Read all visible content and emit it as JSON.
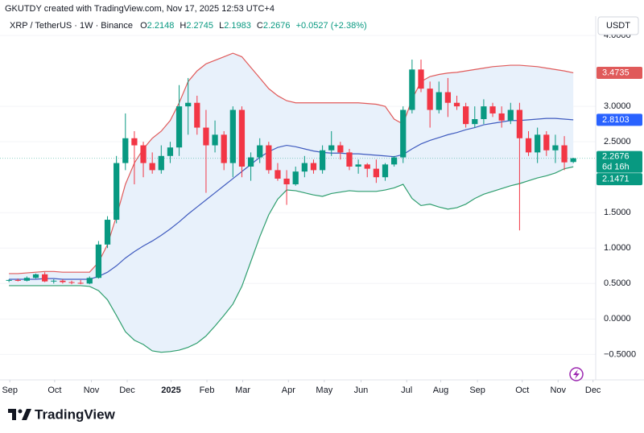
{
  "caption": "GKUTDY created with TradingView.com, Nov 17, 2025 12:53 UTC+4",
  "chart_data": {
    "type": "candlestick",
    "symbol": "XRP / TetherUS · 1W · Binance",
    "ohlc_labels": [
      "O",
      "H",
      "L",
      "C"
    ],
    "change": "+0.0527 (+2.38%)",
    "currency": "USDT",
    "countdown": "6d 16h",
    "up_color": "#089981",
    "down_color": "#f23645",
    "x": [
      0,
      1,
      2,
      3,
      4,
      5,
      6,
      7,
      8,
      9,
      10,
      11,
      12,
      13,
      14,
      15,
      16,
      17,
      18,
      19,
      20,
      21,
      22,
      23,
      24,
      25,
      26,
      27,
      28,
      29,
      30,
      31,
      32,
      33,
      34,
      35,
      36,
      37,
      38,
      39,
      40,
      41,
      42,
      43,
      44,
      45,
      46,
      47,
      48,
      49,
      50,
      51,
      52,
      53,
      54,
      55,
      56,
      57,
      58,
      59,
      60,
      61,
      62,
      63
    ],
    "open": [
      0.54,
      0.55,
      0.54,
      0.58,
      0.63,
      0.53,
      0.54,
      0.52,
      0.51,
      0.5,
      0.58,
      1.05,
      1.4,
      2.2,
      2.55,
      2.45,
      2.2,
      2.1,
      2.3,
      2.42,
      3.0,
      3.05,
      2.7,
      2.45,
      2.6,
      2.2,
      2.95,
      2.15,
      2.28,
      2.45,
      2.1,
      1.98,
      1.9,
      2.08,
      2.2,
      2.1,
      2.38,
      2.45,
      2.35,
      2.15,
      2.18,
      2.12,
      2.0,
      2.18,
      2.28,
      2.95,
      3.52,
      3.25,
      2.95,
      3.2,
      3.05,
      3.0,
      2.75,
      2.82,
      3.0,
      2.9,
      2.8,
      2.95,
      2.55,
      2.35,
      2.6,
      2.38,
      2.45,
      2.2148
    ],
    "high": [
      0.56,
      0.57,
      0.6,
      0.64,
      0.66,
      0.56,
      0.56,
      0.54,
      0.55,
      0.6,
      1.1,
      1.45,
      2.3,
      2.9,
      2.65,
      2.5,
      2.35,
      2.45,
      2.5,
      3.3,
      3.4,
      3.15,
      2.95,
      2.8,
      2.65,
      3.0,
      3.0,
      2.35,
      2.55,
      2.5,
      2.2,
      2.1,
      2.15,
      2.3,
      2.25,
      2.45,
      2.65,
      2.5,
      2.4,
      2.25,
      2.2,
      2.25,
      2.2,
      2.3,
      3.0,
      3.66,
      3.66,
      3.35,
      3.35,
      3.4,
      3.15,
      3.05,
      3.0,
      3.1,
      3.05,
      3.0,
      3.05,
      3.05,
      2.65,
      2.7,
      2.65,
      2.6,
      2.58,
      2.2745
    ],
    "low": [
      0.52,
      0.53,
      0.53,
      0.57,
      0.52,
      0.5,
      0.5,
      0.49,
      0.49,
      0.49,
      0.57,
      1.0,
      1.35,
      2.1,
      1.9,
      2.0,
      2.05,
      2.05,
      2.2,
      2.3,
      2.6,
      2.6,
      1.78,
      2.35,
      2.1,
      2.0,
      2.0,
      1.95,
      2.2,
      2.05,
      1.95,
      1.61,
      1.88,
      2.0,
      2.05,
      2.05,
      2.3,
      2.25,
      2.1,
      2.05,
      2.0,
      1.92,
      1.95,
      2.15,
      2.2,
      2.9,
      3.2,
      2.7,
      2.9,
      2.85,
      2.95,
      2.7,
      2.7,
      2.75,
      2.85,
      2.7,
      2.75,
      1.25,
      2.3,
      2.2,
      2.3,
      2.2,
      2.1,
      2.1983
    ],
    "close": [
      0.55,
      0.54,
      0.58,
      0.63,
      0.53,
      0.54,
      0.52,
      0.51,
      0.5,
      0.58,
      1.05,
      1.4,
      2.2,
      2.55,
      2.45,
      2.2,
      2.1,
      2.3,
      2.42,
      3.0,
      3.05,
      2.7,
      2.45,
      2.6,
      2.2,
      2.95,
      2.15,
      2.28,
      2.45,
      2.1,
      1.98,
      1.9,
      2.08,
      2.2,
      2.1,
      2.38,
      2.45,
      2.35,
      2.15,
      2.18,
      2.12,
      2.0,
      2.18,
      2.28,
      2.95,
      3.52,
      3.25,
      2.95,
      3.2,
      3.05,
      3.0,
      2.75,
      2.82,
      3.0,
      2.9,
      2.8,
      2.95,
      2.55,
      2.35,
      2.6,
      2.38,
      2.45,
      2.21,
      2.2676
    ],
    "bollinger": {
      "upper": {
        "color": "#e05a5a",
        "values": [
          0.64,
          0.64,
          0.65,
          0.66,
          0.67,
          0.67,
          0.66,
          0.66,
          0.66,
          0.66,
          0.8,
          1.05,
          1.45,
          1.9,
          2.2,
          2.4,
          2.55,
          2.65,
          2.8,
          3.05,
          3.35,
          3.5,
          3.6,
          3.65,
          3.7,
          3.75,
          3.7,
          3.55,
          3.4,
          3.25,
          3.15,
          3.08,
          3.05,
          3.05,
          3.05,
          3.05,
          3.05,
          3.05,
          3.05,
          3.05,
          3.04,
          3.03,
          3.0,
          2.82,
          2.75,
          3.1,
          3.35,
          3.42,
          3.45,
          3.47,
          3.48,
          3.5,
          3.52,
          3.54,
          3.56,
          3.57,
          3.58,
          3.58,
          3.57,
          3.56,
          3.54,
          3.52,
          3.5,
          3.4735
        ]
      },
      "basis": {
        "color": "#3f5bbf",
        "values": [
          0.56,
          0.56,
          0.56,
          0.56,
          0.57,
          0.57,
          0.56,
          0.56,
          0.56,
          0.56,
          0.6,
          0.66,
          0.75,
          0.86,
          0.95,
          1.03,
          1.1,
          1.18,
          1.27,
          1.37,
          1.48,
          1.58,
          1.68,
          1.78,
          1.88,
          1.98,
          2.08,
          2.18,
          2.28,
          2.36,
          2.42,
          2.45,
          2.43,
          2.4,
          2.37,
          2.35,
          2.34,
          2.34,
          2.33,
          2.33,
          2.32,
          2.31,
          2.3,
          2.29,
          2.32,
          2.4,
          2.47,
          2.52,
          2.56,
          2.6,
          2.63,
          2.67,
          2.7,
          2.74,
          2.76,
          2.78,
          2.8,
          2.8,
          2.81,
          2.82,
          2.83,
          2.83,
          2.82,
          2.8103
        ]
      },
      "lower": {
        "color": "#2e9e6e",
        "values": [
          0.47,
          0.47,
          0.47,
          0.47,
          0.47,
          0.47,
          0.47,
          0.47,
          0.47,
          0.46,
          0.4,
          0.27,
          0.05,
          -0.18,
          -0.3,
          -0.36,
          -0.45,
          -0.47,
          -0.46,
          -0.44,
          -0.4,
          -0.34,
          -0.24,
          -0.1,
          0.05,
          0.21,
          0.46,
          0.81,
          1.16,
          1.47,
          1.69,
          1.82,
          1.81,
          1.78,
          1.75,
          1.73,
          1.77,
          1.79,
          1.81,
          1.8,
          1.8,
          1.8,
          1.82,
          1.85,
          1.9,
          1.7,
          1.6,
          1.62,
          1.58,
          1.55,
          1.57,
          1.62,
          1.7,
          1.76,
          1.8,
          1.84,
          1.88,
          1.91,
          1.95,
          1.99,
          2.02,
          2.06,
          2.12,
          2.1471
        ]
      },
      "fill": "#e8f1fb"
    },
    "xlim": [
      -1,
      65.5
    ],
    "xticks": [
      {
        "value": 0.1,
        "label": "Sep"
      },
      {
        "value": 5.1,
        "label": "Oct"
      },
      {
        "value": 9.2,
        "label": "Nov"
      },
      {
        "value": 13.2,
        "label": "Dec"
      },
      {
        "value": 18.1,
        "label": "2025"
      },
      {
        "value": 22.1,
        "label": "Feb"
      },
      {
        "value": 26.1,
        "label": "Mar"
      },
      {
        "value": 31.2,
        "label": "Apr"
      },
      {
        "value": 35.2,
        "label": "May"
      },
      {
        "value": 39.3,
        "label": "Jun"
      },
      {
        "value": 44.4,
        "label": "Jul"
      },
      {
        "value": 48.2,
        "label": "Aug"
      },
      {
        "value": 52.3,
        "label": "Sep"
      },
      {
        "value": 57.3,
        "label": "Oct"
      },
      {
        "value": 61.3,
        "label": "Nov"
      },
      {
        "value": 65.2,
        "label": "Dec"
      }
    ],
    "ylim": [
      -0.78,
      4.16
    ],
    "yticks": [
      {
        "value": 4,
        "label": "4.0000"
      },
      {
        "value": 3,
        "label": "3.0000"
      },
      {
        "value": 2.5,
        "label": "2.5000"
      },
      {
        "value": 1.5,
        "label": "1.5000"
      },
      {
        "value": 1,
        "label": "1.0000"
      },
      {
        "value": 0.5,
        "label": "0.5000"
      },
      {
        "value": 0,
        "label": "0.0000"
      },
      {
        "value": -0.5,
        "label": "−0.5000"
      }
    ],
    "grid": true
  },
  "footer": {
    "brand": "TradingView"
  }
}
